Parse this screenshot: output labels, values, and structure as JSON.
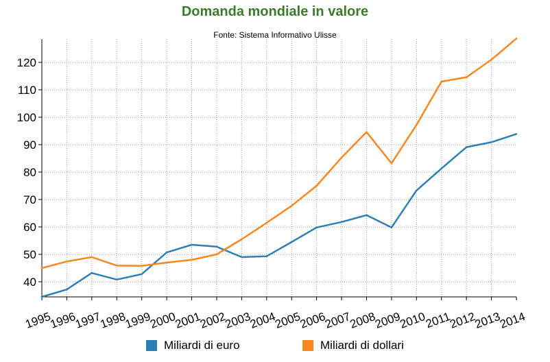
{
  "chart_data": {
    "type": "line",
    "title": "Domanda mondiale in valore",
    "subtitle": "Fonte: Sistema Informativo Ulisse",
    "xlabel": "",
    "ylabel": "",
    "categories": [
      "1995",
      "1996",
      "1997",
      "1998",
      "1999",
      "2000",
      "2001",
      "2002",
      "2003",
      "2004",
      "2005",
      "2006",
      "2007",
      "2008",
      "2009",
      "2010",
      "2011",
      "2012",
      "2013",
      "2014"
    ],
    "y_ticks": [
      40,
      50,
      60,
      70,
      80,
      90,
      100,
      110,
      120
    ],
    "ylim": [
      34.5,
      128.5
    ],
    "grid": true,
    "legend_position": "bottom",
    "series": [
      {
        "name": "Miliardi di euro",
        "color": "#2e7eb8",
        "values": [
          34.5,
          37.2,
          43.2,
          40.8,
          42.8,
          50.7,
          53.5,
          52.8,
          49.0,
          49.3,
          54.5,
          59.8,
          61.8,
          64.3,
          59.8,
          73.3,
          81.3,
          89.1,
          90.9,
          93.9
        ]
      },
      {
        "name": "Miliardi di dollari",
        "color": "#f7881f",
        "values": [
          45.0,
          47.4,
          49.0,
          45.9,
          45.8,
          47.0,
          48.0,
          50.0,
          55.5,
          61.5,
          67.7,
          75.0,
          85.3,
          94.6,
          83.2,
          97.2,
          113.0,
          114.6,
          121.0,
          128.7
        ]
      }
    ]
  }
}
